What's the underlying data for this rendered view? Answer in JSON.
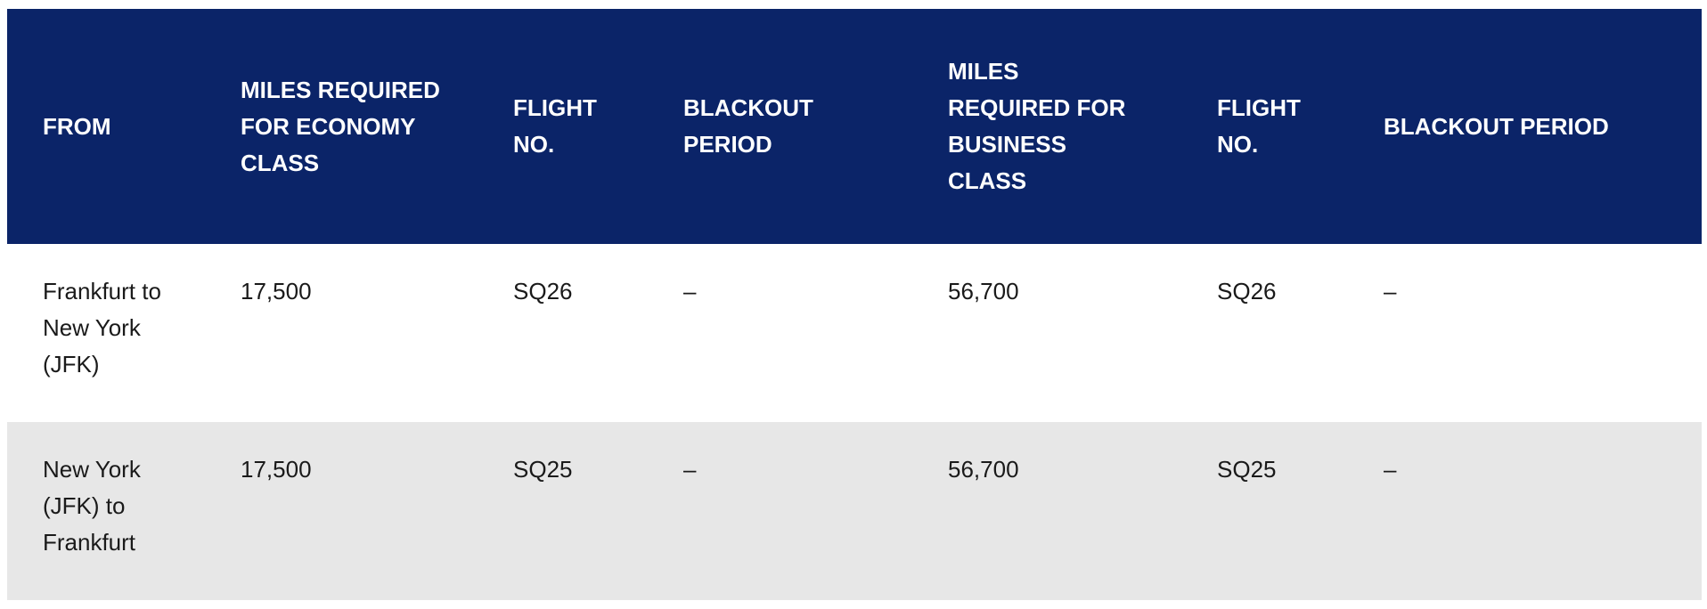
{
  "table": {
    "headers": [
      "FROM",
      "MILES REQUIRED FOR ECONOMY CLASS",
      "FLIGHT NO.",
      "BLACKOUT PERIOD",
      "MILES REQUIRED FOR BUSINESS CLASS",
      "FLIGHT NO.",
      "BLACKOUT PERIOD"
    ],
    "rows": [
      {
        "from": "Frankfurt to New York (JFK)",
        "economy_miles": "17,500",
        "economy_flight": "SQ26",
        "economy_blackout": "–",
        "business_miles": "56,700",
        "business_flight": "SQ26",
        "business_blackout": "–"
      },
      {
        "from": "New York (JFK) to Frankfurt",
        "economy_miles": "17,500",
        "economy_flight": "SQ25",
        "economy_blackout": "–",
        "business_miles": "56,700",
        "business_flight": "SQ25",
        "business_blackout": "–"
      }
    ]
  },
  "colors": {
    "header_background": "#0b2468",
    "header_text": "#ffffff",
    "row_alt_background": "#e7e7e7",
    "body_text": "#1a1a1a"
  }
}
